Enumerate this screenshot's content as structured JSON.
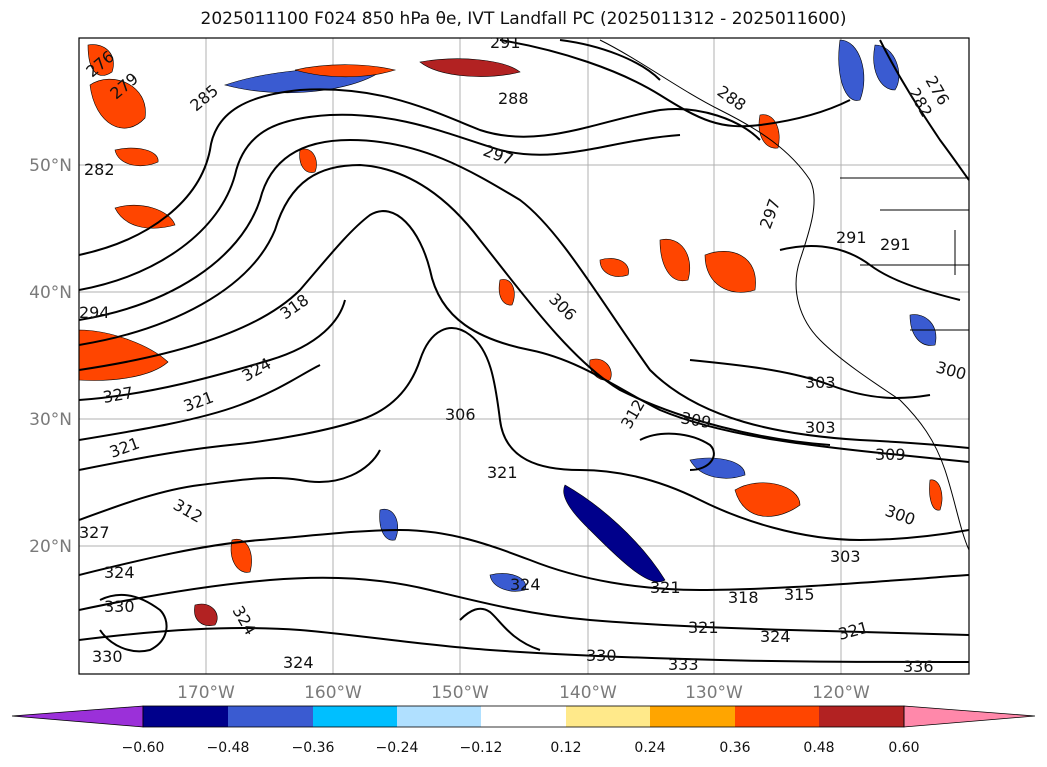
{
  "title": "2025011100 F024 850 hPa θe, IVT Landfall PC (2025011312 - 2025011600)",
  "map": {
    "lat_labels": [
      "50°N",
      "40°N",
      "30°N",
      "20°N"
    ],
    "lon_labels": [
      "170°W",
      "160°W",
      "150°W",
      "140°W",
      "130°W",
      "120°W"
    ],
    "contour_labels": [
      "291",
      "276",
      "279",
      "285",
      "288",
      "282",
      "297",
      "294",
      "318",
      "306",
      "324",
      "321",
      "327",
      "309",
      "312",
      "303",
      "300",
      "315",
      "330",
      "333",
      "336"
    ]
  },
  "colorbar": {
    "ticks": [
      "−0.60",
      "−0.48",
      "−0.36",
      "−0.24",
      "−0.12",
      "0.12",
      "0.24",
      "0.36",
      "0.48",
      "0.60"
    ],
    "colors": [
      "#9b30d9",
      "#00008b",
      "#3a5bd1",
      "#00bfff",
      "#b0e0ff",
      "#ffffff",
      "#ffe98a",
      "#ffa500",
      "#ff4500",
      "#b22222",
      "#ff88aa"
    ]
  }
}
